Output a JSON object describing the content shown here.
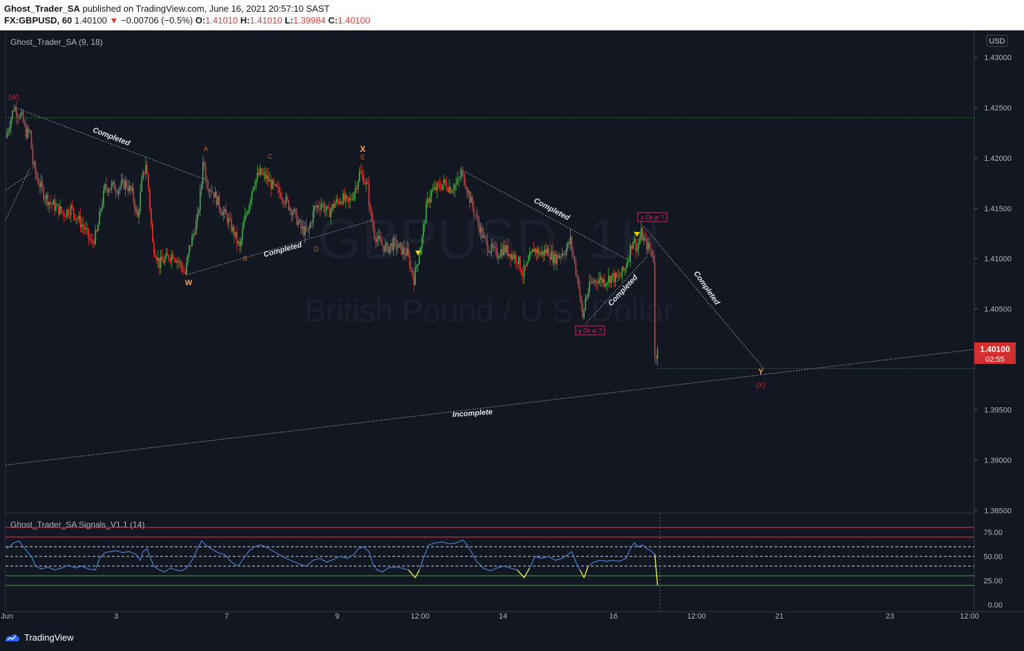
{
  "header": {
    "author": "Ghost_Trader_SA",
    "published_text": "published on TradingView.com, June 16, 2021 20:57:10 SAST",
    "symbol": "FX:GBPUSD, 60",
    "last": "1.40100",
    "change_arrow": "▼",
    "change": "−0.00706 (−0.5%)",
    "o_label": "O:",
    "o_value": "1.41010",
    "h_label": "H:",
    "h_value": "1.41010",
    "l_label": "L:",
    "l_value": "1.39984",
    "c_label": "C:",
    "c_value": "1.40100"
  },
  "chart_data": [
    {
      "type": "candlestick",
      "indicator_label": "Ghost_Trader_SA (9, 18)",
      "currency": "USD",
      "watermark_symbol": "GBPUSD, 1H",
      "watermark_name": "British Pound / U.S. Dollar",
      "y_ticks": [
        "1.43000",
        "1.42500",
        "1.42000",
        "1.41500",
        "1.41000",
        "1.40500",
        "1.39500",
        "1.39000",
        "1.38500"
      ],
      "ylim": [
        1.385,
        1.4325
      ],
      "last_price": "1.40100",
      "countdown": "02:55",
      "x_ticks": [
        "Jun",
        "3",
        "7",
        "9",
        "12:00",
        "14",
        "16",
        "12:00",
        "21",
        "23",
        "12:00"
      ],
      "price_path": [
        [
          0,
          1.422
        ],
        [
          3,
          1.4235
        ],
        [
          6,
          1.425
        ],
        [
          9,
          1.4245
        ],
        [
          12,
          1.424
        ],
        [
          15,
          1.4225
        ],
        [
          18,
          1.4225
        ],
        [
          20,
          1.4195
        ],
        [
          23,
          1.418
        ],
        [
          28,
          1.4165
        ],
        [
          33,
          1.4155
        ],
        [
          38,
          1.415
        ],
        [
          43,
          1.4145
        ],
        [
          48,
          1.415
        ],
        [
          53,
          1.414
        ],
        [
          58,
          1.413
        ],
        [
          63,
          1.4115
        ],
        [
          67,
          1.4125
        ],
        [
          70,
          1.415
        ],
        [
          73,
          1.417
        ],
        [
          78,
          1.4172
        ],
        [
          83,
          1.417
        ],
        [
          88,
          1.4175
        ],
        [
          93,
          1.4165
        ],
        [
          97,
          1.414
        ],
        [
          100,
          1.4175
        ],
        [
          103,
          1.4195
        ],
        [
          105,
          1.417
        ],
        [
          108,
          1.4115
        ],
        [
          113,
          1.4095
        ],
        [
          118,
          1.41
        ],
        [
          123,
          1.4105
        ],
        [
          128,
          1.4095
        ],
        [
          132,
          1.4085
        ],
        [
          135,
          1.411
        ],
        [
          138,
          1.4125
        ],
        [
          141,
          1.414
        ],
        [
          144,
          1.4175
        ],
        [
          145,
          1.42
        ],
        [
          148,
          1.4175
        ],
        [
          153,
          1.4165
        ],
        [
          158,
          1.415
        ],
        [
          163,
          1.414
        ],
        [
          168,
          1.4125
        ],
        [
          172,
          1.411
        ],
        [
          175,
          1.4135
        ],
        [
          178,
          1.415
        ],
        [
          182,
          1.4175
        ],
        [
          187,
          1.4185
        ],
        [
          192,
          1.418
        ],
        [
          197,
          1.417
        ],
        [
          202,
          1.4165
        ],
        [
          207,
          1.4155
        ],
        [
          212,
          1.4145
        ],
        [
          217,
          1.413
        ],
        [
          222,
          1.4125
        ],
        [
          227,
          1.415
        ],
        [
          232,
          1.4155
        ],
        [
          237,
          1.4145
        ],
        [
          242,
          1.4155
        ],
        [
          247,
          1.416
        ],
        [
          252,
          1.4155
        ],
        [
          257,
          1.417
        ],
        [
          260,
          1.4185
        ],
        [
          263,
          1.418
        ],
        [
          266,
          1.417
        ],
        [
          268,
          1.4145
        ],
        [
          271,
          1.4125
        ],
        [
          275,
          1.4115
        ],
        [
          280,
          1.411
        ],
        [
          285,
          1.4115
        ],
        [
          290,
          1.411
        ],
        [
          295,
          1.4105
        ],
        [
          300,
          1.408
        ],
        [
          303,
          1.41
        ],
        [
          306,
          1.412
        ],
        [
          309,
          1.415
        ],
        [
          312,
          1.4165
        ],
        [
          317,
          1.417
        ],
        [
          322,
          1.4175
        ],
        [
          327,
          1.417
        ],
        [
          332,
          1.4175
        ],
        [
          335,
          1.4185
        ],
        [
          338,
          1.4175
        ],
        [
          341,
          1.416
        ],
        [
          346,
          1.414
        ],
        [
          351,
          1.412
        ],
        [
          356,
          1.411
        ],
        [
          361,
          1.4105
        ],
        [
          366,
          1.411
        ],
        [
          371,
          1.4105
        ],
        [
          376,
          1.41
        ],
        [
          380,
          1.4085
        ],
        [
          384,
          1.4095
        ],
        [
          388,
          1.411
        ],
        [
          393,
          1.4105
        ],
        [
          398,
          1.4108
        ],
        [
          403,
          1.41
        ],
        [
          408,
          1.4105
        ],
        [
          412,
          1.411
        ],
        [
          415,
          1.4118
        ],
        [
          418,
          1.4095
        ],
        [
          421,
          1.4075
        ],
        [
          424,
          1.404
        ],
        [
          426,
          1.406
        ],
        [
          430,
          1.4075
        ],
        [
          435,
          1.408
        ],
        [
          440,
          1.4078
        ],
        [
          445,
          1.4082
        ],
        [
          450,
          1.408
        ],
        [
          455,
          1.409
        ],
        [
          458,
          1.4105
        ],
        [
          461,
          1.412
        ],
        [
          464,
          1.411
        ],
        [
          467,
          1.4125
        ],
        [
          470,
          1.4115
        ],
        [
          473,
          1.411
        ],
        [
          475,
          1.4105
        ],
        [
          476,
          1.4101
        ],
        [
          477,
          1.4001
        ],
        [
          478,
          1.401
        ]
      ],
      "annotations": [
        {
          "text": "(W)",
          "color": "#c62828"
        },
        {
          "text": "A",
          "color": "#b85c1a"
        },
        {
          "text": "B",
          "color": "#b85c1a"
        },
        {
          "text": "C",
          "color": "#b85c1a"
        },
        {
          "text": "D",
          "color": "#b85c1a"
        },
        {
          "text": "E",
          "color": "#b85c1a"
        },
        {
          "text": "X",
          "color": "#f5a55b"
        },
        {
          "text": "W",
          "color": "#f5a55b"
        },
        {
          "text": "Y",
          "color": "#f5a55b"
        },
        {
          "text": "(X)",
          "color": "#c62828"
        }
      ],
      "boxed_labels": [
        "x Or w ?",
        "y Or w ?"
      ],
      "trend_labels": [
        "Completed",
        "Completed",
        "Completed",
        "Completed",
        "Completed",
        "Incomplete"
      ],
      "levels": [
        1.424,
        1.3991
      ]
    },
    {
      "type": "line",
      "indicator_label": "Ghost_Trader_SA Signals_V1.1 (14)",
      "y_ticks": [
        "75.00",
        "50.00",
        "25.00",
        "0.00"
      ],
      "ylim": [
        0,
        92
      ],
      "bands": [
        80,
        70,
        60,
        50,
        40,
        30,
        20
      ],
      "line_color": "#4a7fd0",
      "signal_color": "#e8e84d",
      "rsi_path": [
        [
          0,
          58
        ],
        [
          5,
          64
        ],
        [
          9,
          66
        ],
        [
          12,
          60
        ],
        [
          15,
          55
        ],
        [
          18,
          50
        ],
        [
          21,
          40
        ],
        [
          25,
          37
        ],
        [
          30,
          39
        ],
        [
          35,
          36
        ],
        [
          40,
          38
        ],
        [
          45,
          41
        ],
        [
          50,
          38
        ],
        [
          55,
          40
        ],
        [
          60,
          37
        ],
        [
          65,
          36
        ],
        [
          68,
          48
        ],
        [
          72,
          54
        ],
        [
          76,
          55
        ],
        [
          80,
          56
        ],
        [
          85,
          54
        ],
        [
          90,
          55
        ],
        [
          95,
          52
        ],
        [
          98,
          46
        ],
        [
          100,
          55
        ],
        [
          103,
          58
        ],
        [
          105,
          50
        ],
        [
          108,
          40
        ],
        [
          112,
          36
        ],
        [
          116,
          34
        ],
        [
          120,
          38
        ],
        [
          124,
          36
        ],
        [
          128,
          35
        ],
        [
          132,
          38
        ],
        [
          136,
          46
        ],
        [
          140,
          58
        ],
        [
          143,
          66
        ],
        [
          146,
          62
        ],
        [
          150,
          58
        ],
        [
          155,
          54
        ],
        [
          160,
          52
        ],
        [
          165,
          44
        ],
        [
          170,
          40
        ],
        [
          174,
          48
        ],
        [
          178,
          56
        ],
        [
          182,
          60
        ],
        [
          186,
          62
        ],
        [
          190,
          60
        ],
        [
          195,
          56
        ],
        [
          200,
          52
        ],
        [
          205,
          48
        ],
        [
          210,
          45
        ],
        [
          215,
          42
        ],
        [
          220,
          40
        ],
        [
          225,
          46
        ],
        [
          230,
          48
        ],
        [
          235,
          44
        ],
        [
          240,
          47
        ],
        [
          245,
          50
        ],
        [
          250,
          48
        ],
        [
          255,
          52
        ],
        [
          258,
          58
        ],
        [
          262,
          60
        ],
        [
          266,
          55
        ],
        [
          269,
          42
        ],
        [
          272,
          36
        ],
        [
          276,
          34
        ],
        [
          280,
          38
        ],
        [
          285,
          39
        ],
        [
          290,
          38
        ],
        [
          295,
          36
        ],
        [
          300,
          28
        ],
        [
          303,
          36
        ],
        [
          306,
          48
        ],
        [
          310,
          62
        ],
        [
          315,
          64
        ],
        [
          320,
          65
        ],
        [
          325,
          63
        ],
        [
          330,
          64
        ],
        [
          335,
          67
        ],
        [
          338,
          62
        ],
        [
          341,
          55
        ],
        [
          345,
          45
        ],
        [
          350,
          38
        ],
        [
          355,
          35
        ],
        [
          360,
          38
        ],
        [
          365,
          40
        ],
        [
          370,
          38
        ],
        [
          375,
          36
        ],
        [
          380,
          28
        ],
        [
          384,
          38
        ],
        [
          388,
          50
        ],
        [
          393,
          48
        ],
        [
          398,
          50
        ],
        [
          403,
          46
        ],
        [
          408,
          48
        ],
        [
          412,
          52
        ],
        [
          415,
          55
        ],
        [
          418,
          44
        ],
        [
          421,
          36
        ],
        [
          424,
          28
        ],
        [
          427,
          40
        ],
        [
          431,
          44
        ],
        [
          436,
          46
        ],
        [
          440,
          45
        ],
        [
          445,
          46
        ],
        [
          450,
          45
        ],
        [
          455,
          48
        ],
        [
          458,
          58
        ],
        [
          461,
          64
        ],
        [
          464,
          60
        ],
        [
          467,
          62
        ],
        [
          470,
          58
        ],
        [
          473,
          56
        ],
        [
          476,
          52
        ],
        [
          478,
          20
        ]
      ]
    }
  ],
  "footer": {
    "brand": "TradingView"
  }
}
